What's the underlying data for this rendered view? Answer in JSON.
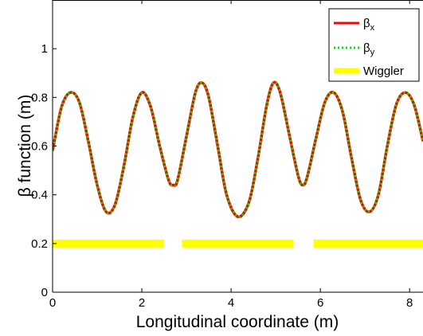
{
  "chart_data": {
    "type": "line",
    "xlabel": "Longitudinal coordinate (m)",
    "ylabel": "β function (m)",
    "xlim": [
      0,
      8.3
    ],
    "ylim": [
      0,
      1.2
    ],
    "x_ticks": [
      "0",
      "2",
      "4",
      "6",
      "8"
    ],
    "y_ticks": [
      "0",
      "0.2",
      "0.4",
      "0.6",
      "0.8",
      "1"
    ],
    "grid": false,
    "legend_position": "top-right",
    "series": [
      {
        "name": "βx",
        "name_base": "β",
        "name_sub": "x",
        "color": "#ff0000",
        "style": "solid",
        "x": [
          0.0,
          0.2,
          0.4,
          0.6,
          0.8,
          1.0,
          1.2,
          1.4,
          1.6,
          1.8,
          2.0,
          2.2,
          2.4,
          2.6,
          2.7,
          2.8,
          3.0,
          3.2,
          3.35,
          3.5,
          3.7,
          3.9,
          4.15,
          4.4,
          4.6,
          4.8,
          4.95,
          5.1,
          5.3,
          5.5,
          5.6,
          5.7,
          5.9,
          6.1,
          6.3,
          6.5,
          6.7,
          6.9,
          7.1,
          7.3,
          7.5,
          7.7,
          7.9,
          8.1,
          8.3
        ],
        "y": [
          0.58,
          0.76,
          0.82,
          0.78,
          0.62,
          0.44,
          0.33,
          0.36,
          0.52,
          0.72,
          0.82,
          0.76,
          0.6,
          0.46,
          0.44,
          0.46,
          0.64,
          0.82,
          0.86,
          0.8,
          0.6,
          0.4,
          0.31,
          0.37,
          0.55,
          0.77,
          0.86,
          0.82,
          0.65,
          0.48,
          0.44,
          0.47,
          0.63,
          0.78,
          0.82,
          0.74,
          0.55,
          0.38,
          0.33,
          0.4,
          0.6,
          0.77,
          0.82,
          0.77,
          0.62
        ]
      },
      {
        "name": "βy",
        "name_base": "β",
        "name_sub": "y",
        "color": "#00ee00",
        "style": "dotted",
        "x": [
          0.0,
          0.2,
          0.4,
          0.6,
          0.8,
          1.0,
          1.2,
          1.4,
          1.6,
          1.8,
          2.0,
          2.2,
          2.4,
          2.6,
          2.7,
          2.8,
          3.0,
          3.2,
          3.35,
          3.5,
          3.7,
          3.9,
          4.15,
          4.4,
          4.6,
          4.8,
          4.95,
          5.1,
          5.3,
          5.5,
          5.6,
          5.7,
          5.9,
          6.1,
          6.3,
          6.5,
          6.7,
          6.9,
          7.1,
          7.3,
          7.5,
          7.7,
          7.9,
          8.1,
          8.3
        ],
        "y": [
          0.58,
          0.76,
          0.82,
          0.78,
          0.62,
          0.44,
          0.33,
          0.36,
          0.52,
          0.72,
          0.82,
          0.76,
          0.6,
          0.46,
          0.44,
          0.46,
          0.64,
          0.82,
          0.86,
          0.8,
          0.6,
          0.4,
          0.31,
          0.37,
          0.55,
          0.77,
          0.86,
          0.82,
          0.65,
          0.48,
          0.44,
          0.47,
          0.63,
          0.78,
          0.82,
          0.74,
          0.55,
          0.38,
          0.33,
          0.4,
          0.6,
          0.77,
          0.82,
          0.77,
          0.62
        ]
      },
      {
        "name": "Wiggler",
        "color": "#ffff00",
        "style": "segments",
        "y": 0.2,
        "segments": [
          [
            0.0,
            2.5
          ],
          [
            2.9,
            5.4
          ],
          [
            5.85,
            8.3
          ]
        ]
      }
    ]
  }
}
